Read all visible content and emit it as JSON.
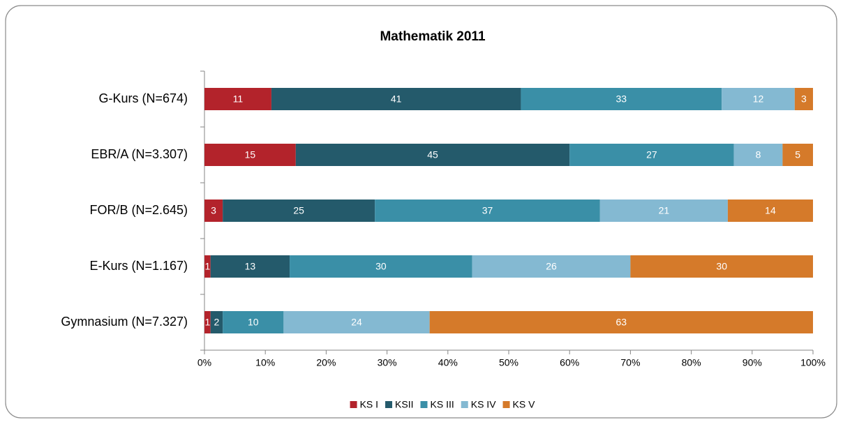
{
  "chart_data": {
    "type": "stacked-bar-horizontal",
    "title": "Mathematik 2011",
    "categories": [
      "G-Kurs (N=674)",
      "EBR/A (N=3.307)",
      "FOR/B (N=2.645)",
      "E-Kurs (N=1.167)",
      "Gymnasium (N=7.327)"
    ],
    "series": [
      {
        "name": "KS I",
        "color": "#b3232b",
        "values": [
          11,
          15,
          3,
          1,
          1
        ]
      },
      {
        "name": "KSII",
        "color": "#245a6b",
        "values": [
          41,
          45,
          25,
          13,
          2
        ]
      },
      {
        "name": "KS III",
        "color": "#3a8fa7",
        "values": [
          33,
          27,
          37,
          30,
          10
        ]
      },
      {
        "name": "KS IV",
        "color": "#84b9d2",
        "values": [
          12,
          8,
          21,
          26,
          24
        ]
      },
      {
        "name": "KS V",
        "color": "#d57a2a",
        "values": [
          3,
          5,
          14,
          30,
          63
        ]
      }
    ],
    "xlim": [
      0,
      100
    ],
    "xticks": [
      {
        "value": 0,
        "label": "0%"
      },
      {
        "value": 10,
        "label": "10%"
      },
      {
        "value": 20,
        "label": "20%"
      },
      {
        "value": 30,
        "label": "30%"
      },
      {
        "value": 40,
        "label": "40%"
      },
      {
        "value": 50,
        "label": "50%"
      },
      {
        "value": 60,
        "label": "60%"
      },
      {
        "value": 70,
        "label": "70%"
      },
      {
        "value": 80,
        "label": "80%"
      },
      {
        "value": 90,
        "label": "90%"
      },
      {
        "value": 100,
        "label": "100%"
      }
    ],
    "legend": "bottom"
  }
}
